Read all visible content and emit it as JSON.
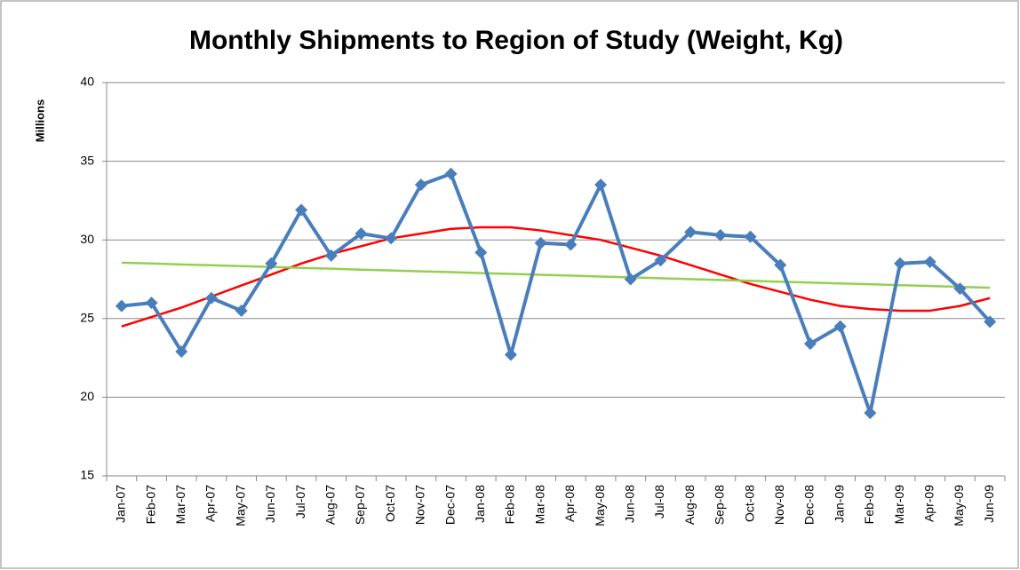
{
  "chart_data": {
    "type": "line",
    "title": "Monthly Shipments to Region of Study (Weight, Kg)",
    "y_label": "Millions",
    "categories": [
      "Jan-07",
      "Feb-07",
      "Mar-07",
      "Apr-07",
      "May-07",
      "Jun-07",
      "Jul-07",
      "Aug-07",
      "Sep-07",
      "Oct-07",
      "Nov-07",
      "Dec-07",
      "Jan-08",
      "Feb-08",
      "Mar-08",
      "Apr-08",
      "May-08",
      "Jun-08",
      "Jul-08",
      "Aug-08",
      "Sep-08",
      "Oct-08",
      "Nov-08",
      "Dec-08",
      "Jan-09",
      "Feb-09",
      "Mar-09",
      "Apr-09",
      "May-09",
      "Jun-09"
    ],
    "series": [
      {
        "color": "#4a7ebb",
        "marker": "diamond",
        "values": [
          25.8,
          26.0,
          22.9,
          26.3,
          25.5,
          28.5,
          31.9,
          29.0,
          30.4,
          30.1,
          33.5,
          34.2,
          29.2,
          22.7,
          29.8,
          29.7,
          33.5,
          27.5,
          28.7,
          30.5,
          30.3,
          30.2,
          28.4,
          23.4,
          24.5,
          19.0,
          28.5,
          28.6,
          26.9,
          24.8
        ]
      },
      {
        "color": "#92d050",
        "values": [
          28.55,
          28.5,
          28.44,
          28.39,
          28.33,
          28.28,
          28.22,
          28.17,
          28.11,
          28.06,
          28.0,
          27.95,
          27.89,
          27.84,
          27.78,
          27.73,
          27.67,
          27.62,
          27.56,
          27.51,
          27.45,
          27.4,
          27.34,
          27.29,
          27.23,
          27.18,
          27.12,
          27.07,
          27.01,
          26.96
        ]
      },
      {
        "color": "#ff0000",
        "values": [
          24.5,
          25.1,
          25.7,
          26.4,
          27.1,
          27.8,
          28.5,
          29.1,
          29.6,
          30.1,
          30.4,
          30.7,
          30.8,
          30.8,
          30.6,
          30.3,
          30.0,
          29.5,
          29.0,
          28.4,
          27.8,
          27.2,
          26.7,
          26.2,
          25.8,
          25.6,
          25.5,
          25.5,
          25.8,
          26.3
        ]
      }
    ],
    "ylim": [
      15,
      40
    ],
    "yticks": [
      15,
      20,
      25,
      30,
      35,
      40
    ],
    "grid": true
  }
}
